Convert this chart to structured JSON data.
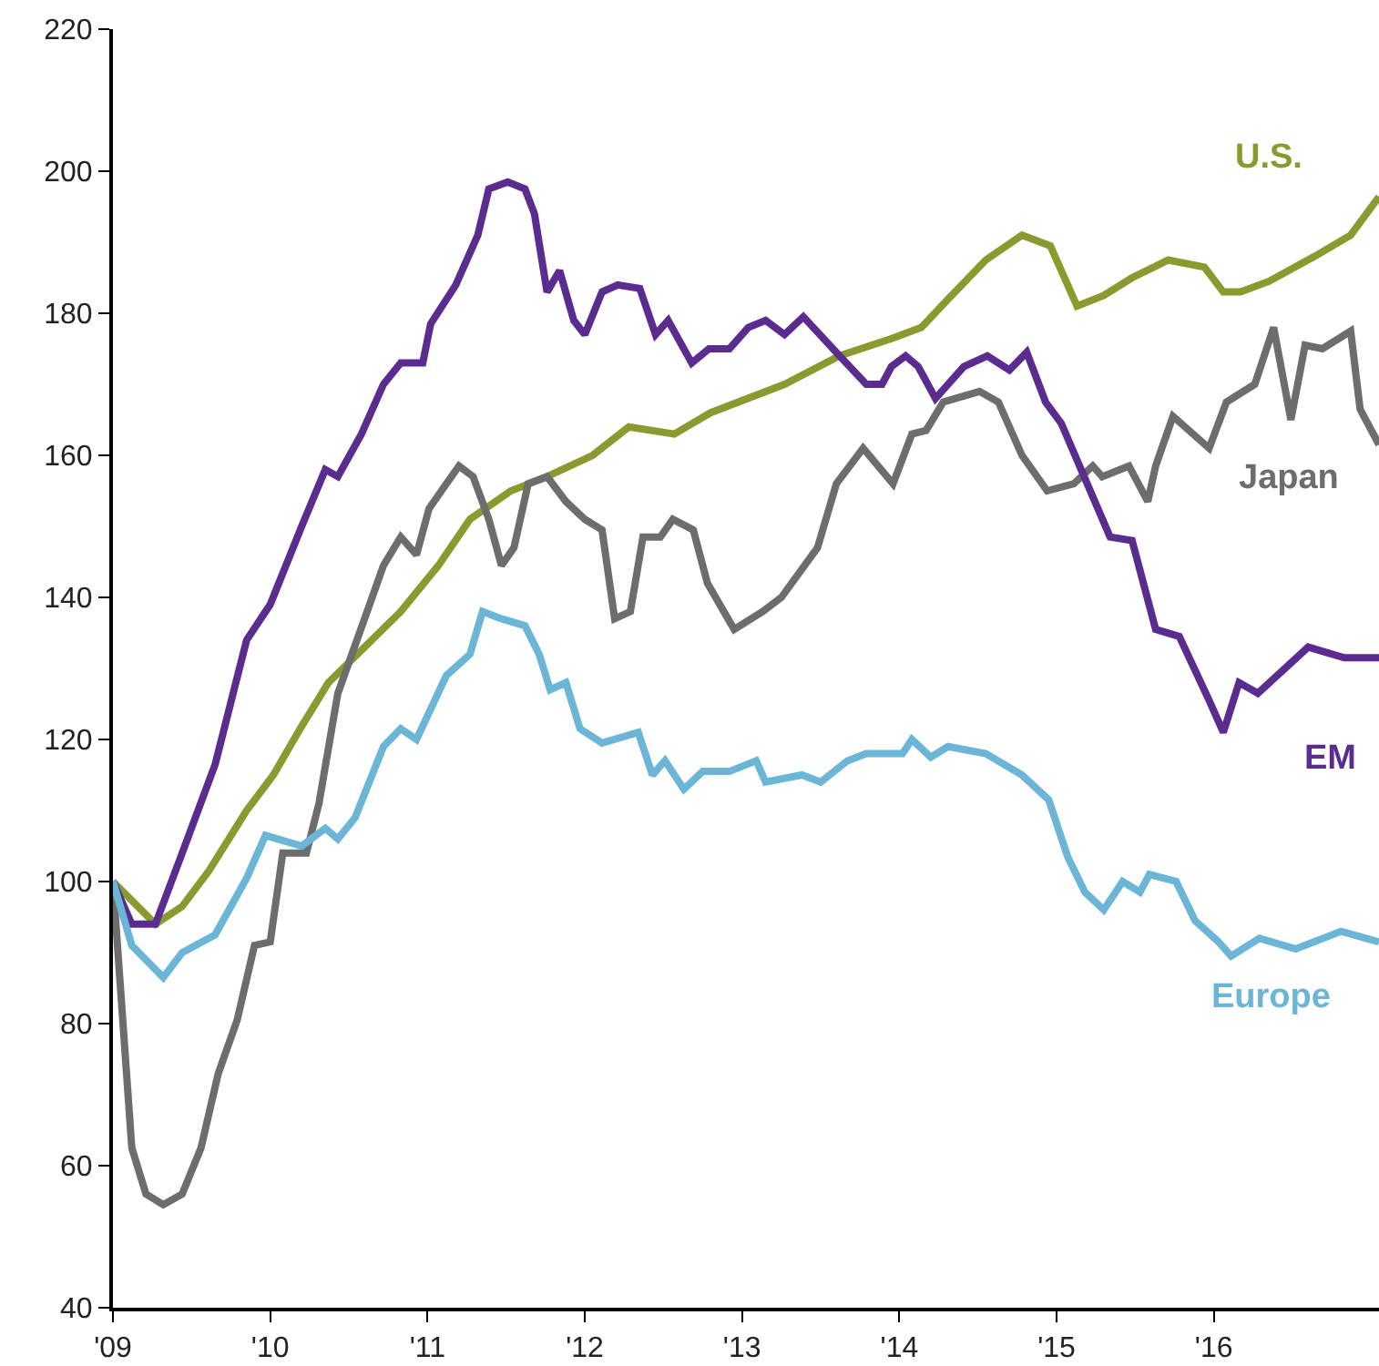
{
  "chart_data": {
    "type": "line",
    "xlim": [
      2009,
      2017.05
    ],
    "ylim": [
      40,
      220
    ],
    "xticks": [
      {
        "value": 2009,
        "label": "'09"
      },
      {
        "value": 2010,
        "label": "'10"
      },
      {
        "value": 2011,
        "label": "'11"
      },
      {
        "value": 2012,
        "label": "'12"
      },
      {
        "value": 2013,
        "label": "'13"
      },
      {
        "value": 2014,
        "label": "'14"
      },
      {
        "value": 2015,
        "label": "'15"
      },
      {
        "value": 2016,
        "label": "'16"
      }
    ],
    "yticks": [
      40,
      60,
      80,
      100,
      120,
      140,
      160,
      180,
      200,
      220
    ],
    "grid": false,
    "legend": false,
    "marker": "none",
    "line_style": "solid",
    "series": [
      {
        "name": "U.S.",
        "color": "#8a9a2e",
        "x": [
          2009,
          2009.27,
          2009.44,
          2009.61,
          2009.85,
          2010.02,
          2010.19,
          2010.37,
          2010.6,
          2010.83,
          2011.07,
          2011.27,
          2011.53,
          2011.76,
          2012.05,
          2012.28,
          2012.57,
          2012.8,
          2013.27,
          2013.62,
          2013.96,
          2014.14,
          2014.31,
          2014.55,
          2014.78,
          2014.96,
          2015.13,
          2015.3,
          2015.48,
          2015.71,
          2015.94,
          2016.06,
          2016.17,
          2016.35,
          2016.64,
          2016.87,
          2017.05
        ],
        "values": [
          100,
          94,
          96.5,
          101.5,
          110,
          115,
          121.5,
          128,
          133,
          138,
          144.5,
          151,
          155,
          157,
          160,
          164,
          163,
          166,
          170,
          174,
          176.5,
          178,
          182,
          187.5,
          191,
          189.5,
          181,
          182.5,
          185,
          187.5,
          186.5,
          183,
          183,
          184.5,
          188,
          191,
          196.4
        ]
      },
      {
        "name": "Japan",
        "color": "#6d6d6d",
        "x": [
          2009,
          2009.12,
          2009.21,
          2009.32,
          2009.44,
          2009.56,
          2009.67,
          2009.79,
          2009.9,
          2010,
          2010.08,
          2010.23,
          2010.31,
          2010.43,
          2010.6,
          2010.72,
          2010.83,
          2010.93,
          2011.01,
          2011.12,
          2011.2,
          2011.29,
          2011.39,
          2011.47,
          2011.55,
          2011.64,
          2011.76,
          2011.88,
          2012,
          2012.11,
          2012.19,
          2012.29,
          2012.37,
          2012.48,
          2012.56,
          2012.69,
          2012.78,
          2012.95,
          2013.13,
          2013.25,
          2013.48,
          2013.6,
          2013.77,
          2013.96,
          2014.08,
          2014.17,
          2014.28,
          2014.51,
          2014.63,
          2014.78,
          2014.94,
          2015.11,
          2015.23,
          2015.29,
          2015.46,
          2015.58,
          2015.63,
          2015.74,
          2015.97,
          2016.08,
          2016.26,
          2016.38,
          2016.49,
          2016.58,
          2016.69,
          2016.87,
          2016.93,
          2017.05
        ],
        "values": [
          100,
          62.5,
          56,
          54.5,
          56,
          62.5,
          73,
          80.5,
          91,
          91.5,
          104,
          104,
          111,
          126.5,
          137,
          144.5,
          148.5,
          146,
          152.5,
          156,
          158.5,
          157,
          151,
          144.5,
          147,
          156,
          157,
          153.5,
          151,
          149.5,
          137,
          138,
          148.5,
          148.5,
          151,
          149.5,
          142,
          135.5,
          138,
          140,
          147,
          156,
          161,
          156,
          163,
          163.5,
          167.5,
          169,
          167.5,
          160,
          155,
          156,
          158.5,
          157,
          158.5,
          153.5,
          158.5,
          165.5,
          161,
          167.5,
          170,
          178,
          165,
          175.5,
          175,
          177.5,
          166.5,
          161.5
        ]
      },
      {
        "name": "EM",
        "color": "#5b2c8f",
        "x": [
          2009,
          2009.12,
          2009.27,
          2009.44,
          2009.65,
          2009.85,
          2010,
          2010.2,
          2010.35,
          2010.43,
          2010.58,
          2010.72,
          2010.83,
          2010.97,
          2011.02,
          2011.18,
          2011.32,
          2011.39,
          2011.51,
          2011.62,
          2011.68,
          2011.76,
          2011.84,
          2011.93,
          2012,
          2012.11,
          2012.21,
          2012.35,
          2012.45,
          2012.53,
          2012.68,
          2012.79,
          2012.92,
          2013.04,
          2013.15,
          2013.27,
          2013.39,
          2013.62,
          2013.79,
          2013.89,
          2013.95,
          2014.04,
          2014.12,
          2014.23,
          2014.41,
          2014.56,
          2014.7,
          2014.81,
          2014.93,
          2015.03,
          2015.34,
          2015.48,
          2015.63,
          2015.78,
          2015.97,
          2016.06,
          2016.16,
          2016.28,
          2016.6,
          2016.83,
          2017.05
        ],
        "values": [
          100,
          94,
          94,
          104,
          116.5,
          134,
          139,
          150,
          158,
          157,
          163,
          170,
          173,
          173,
          178.5,
          184,
          191,
          197.5,
          198.5,
          197.5,
          194,
          183,
          186,
          179,
          177,
          183,
          184,
          183.5,
          177,
          179,
          173,
          175,
          175,
          178,
          179,
          177,
          179.5,
          174,
          170,
          170,
          172.5,
          174,
          172.5,
          168,
          172.5,
          174,
          172,
          174.5,
          167.5,
          164.5,
          148.5,
          148,
          135.5,
          134.5,
          125.5,
          121,
          128,
          126.5,
          133,
          131.5,
          131.5
        ]
      },
      {
        "name": "Europe",
        "color": "#6bb6d6",
        "x": [
          2009,
          2009.12,
          2009.32,
          2009.44,
          2009.65,
          2009.85,
          2009.97,
          2010.2,
          2010.35,
          2010.43,
          2010.54,
          2010.72,
          2010.83,
          2010.93,
          2011.12,
          2011.27,
          2011.35,
          2011.47,
          2011.62,
          2011.71,
          2011.78,
          2011.88,
          2011.97,
          2012.11,
          2012.34,
          2012.43,
          2012.51,
          2012.63,
          2012.75,
          2012.92,
          2013.09,
          2013.15,
          2013.38,
          2013.5,
          2013.67,
          2013.79,
          2014.02,
          2014.08,
          2014.2,
          2014.31,
          2014.55,
          2014.78,
          2014.95,
          2015.07,
          2015.18,
          2015.3,
          2015.42,
          2015.53,
          2015.59,
          2015.76,
          2015.88,
          2016.03,
          2016.11,
          2016.29,
          2016.52,
          2016.81,
          2017.05
        ],
        "values": [
          100,
          91,
          86.5,
          90,
          92.5,
          100.5,
          106.5,
          105,
          107.5,
          106,
          109,
          119,
          121.5,
          120,
          129,
          132,
          138,
          137,
          136,
          132,
          127,
          128,
          121.5,
          119.5,
          121,
          115,
          117,
          113,
          115.5,
          115.5,
          117,
          114,
          115,
          114,
          117,
          118,
          118,
          120,
          117.5,
          119,
          118,
          115,
          111.5,
          103.5,
          98.5,
          96,
          100,
          98.5,
          101,
          100,
          94.5,
          91.5,
          89.5,
          92,
          90.5,
          93,
          91.5
        ]
      }
    ]
  }
}
